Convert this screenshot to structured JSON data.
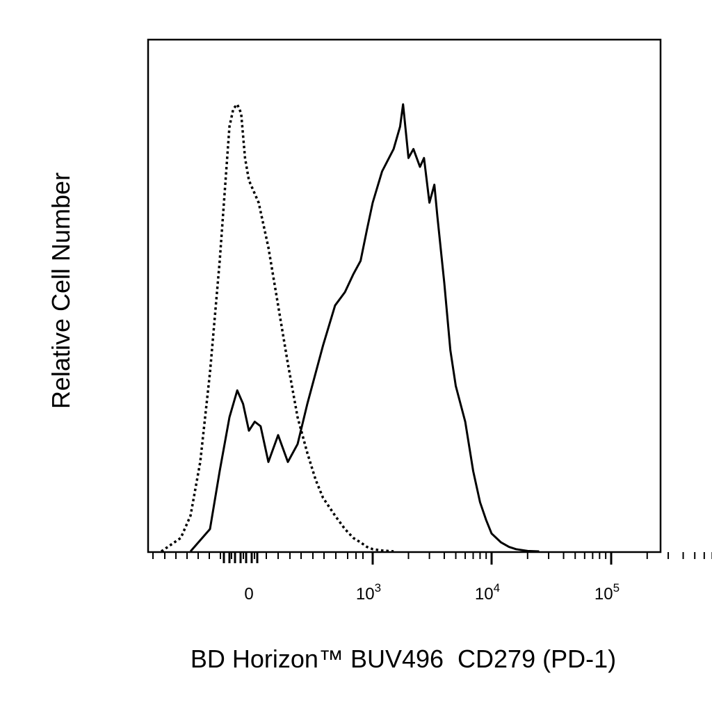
{
  "chart_data": {
    "type": "line",
    "xlabel": "BD Horizon™ BUV496  CD279 (PD-1)",
    "ylabel": "Relative Cell Number",
    "x_scale": "biexponential",
    "x_ticks": [
      {
        "value": 0,
        "base": "0",
        "exp": ""
      },
      {
        "value": 1000,
        "base": "10",
        "exp": "3"
      },
      {
        "value": 10000,
        "base": "10",
        "exp": "4"
      },
      {
        "value": 100000,
        "base": "10",
        "exp": "5"
      }
    ],
    "y_ticks": "none",
    "grid": false,
    "legend": "none",
    "series": [
      {
        "style": "dotted",
        "color": "#000000",
        "x": [
          -450,
          -350,
          -300,
          -250,
          -200,
          -150,
          -120,
          -100,
          -80,
          -60,
          -40,
          -20,
          0,
          50,
          100,
          150,
          200,
          250,
          300,
          350,
          400,
          500,
          600,
          700,
          800,
          900,
          1000,
          1200,
          1500
        ],
        "y": [
          0.0,
          0.03,
          0.08,
          0.2,
          0.4,
          0.65,
          0.83,
          0.95,
          0.99,
          1.0,
          0.98,
          0.88,
          0.83,
          0.78,
          0.68,
          0.55,
          0.42,
          0.3,
          0.22,
          0.16,
          0.12,
          0.08,
          0.05,
          0.03,
          0.02,
          0.01,
          0.005,
          0.002,
          0.0
        ]
      },
      {
        "style": "solid",
        "color": "#000000",
        "x": [
          -300,
          -200,
          -150,
          -100,
          -60,
          -30,
          0,
          30,
          60,
          100,
          150,
          200,
          250,
          300,
          400,
          500,
          600,
          700,
          800,
          900,
          1000,
          1200,
          1500,
          1700,
          1800,
          2000,
          2200,
          2500,
          2700,
          3000,
          3300,
          3500,
          4000,
          4500,
          5000,
          6000,
          7000,
          8000,
          9000,
          10000,
          12000,
          14000,
          16000,
          20000,
          25000
        ],
        "y": [
          0.0,
          0.05,
          0.18,
          0.3,
          0.36,
          0.33,
          0.27,
          0.29,
          0.28,
          0.2,
          0.26,
          0.2,
          0.24,
          0.33,
          0.46,
          0.55,
          0.58,
          0.62,
          0.65,
          0.72,
          0.78,
          0.85,
          0.9,
          0.95,
          1.0,
          0.88,
          0.9,
          0.86,
          0.88,
          0.78,
          0.82,
          0.75,
          0.6,
          0.45,
          0.37,
          0.29,
          0.18,
          0.11,
          0.07,
          0.04,
          0.02,
          0.01,
          0.005,
          0.001,
          0.0
        ]
      }
    ]
  }
}
